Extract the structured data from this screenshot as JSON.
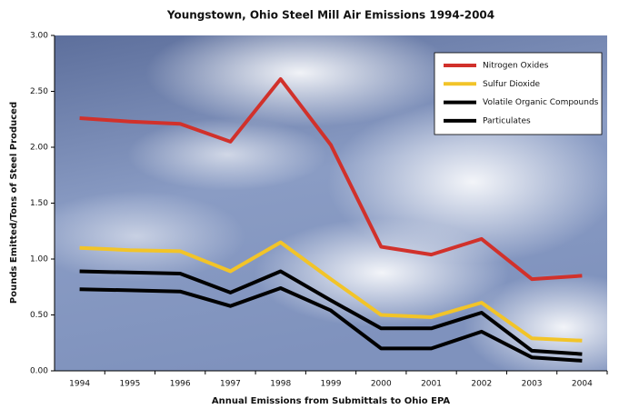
{
  "chart_data": {
    "type": "line",
    "title": "Youngstown, Ohio Steel Mill Air Emissions 1994-2004",
    "x_label": "Annual Emissions from Submittals to Ohio EPA",
    "y_label": "Pounds Emitted/Tons of Steel Produced",
    "categories": [
      "1994",
      "1995",
      "1996",
      "1997",
      "1998",
      "1999",
      "2000",
      "2001",
      "2002",
      "2003",
      "2004"
    ],
    "series": [
      {
        "name": "Nitrogen Oxides",
        "color": "#d1312b",
        "values": [
          2.26,
          2.23,
          2.21,
          2.05,
          2.61,
          2.02,
          1.11,
          1.04,
          1.18,
          0.82,
          0.85
        ]
      },
      {
        "name": "Sulfur Dioxide",
        "color": "#f2c428",
        "values": [
          1.1,
          1.08,
          1.07,
          0.89,
          1.15,
          0.82,
          0.5,
          0.48,
          0.61,
          0.29,
          0.27
        ]
      },
      {
        "name": "Volatile Organic Compounds",
        "color": "#000000",
        "values": [
          0.89,
          0.88,
          0.87,
          0.7,
          0.89,
          0.63,
          0.38,
          0.38,
          0.52,
          0.18,
          0.15
        ]
      },
      {
        "name": "Particulates",
        "color": "#000000",
        "values": [
          0.73,
          0.72,
          0.71,
          0.58,
          0.74,
          0.54,
          0.2,
          0.2,
          0.35,
          0.12,
          0.09
        ]
      }
    ],
    "ylim": [
      0,
      3
    ],
    "yticks": [
      {
        "value": 0,
        "label": "0.00"
      },
      {
        "value": 0.5,
        "label": "0.50"
      },
      {
        "value": 1,
        "label": "1.00"
      },
      {
        "value": 1.5,
        "label": "1.50"
      },
      {
        "value": 2,
        "label": "2.00"
      },
      {
        "value": 2.5,
        "label": "2.50"
      },
      {
        "value": 3,
        "label": "3.00"
      }
    ],
    "legend": "top-right"
  }
}
